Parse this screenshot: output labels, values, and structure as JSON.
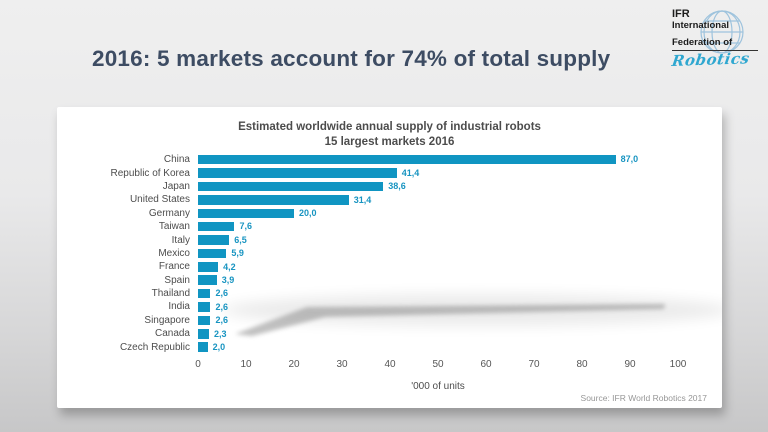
{
  "slide": {
    "title": "2016: 5 markets account for 74% of total supply"
  },
  "logo": {
    "line1": "IFR",
    "line2": "International",
    "line3": "Federation of",
    "script": "Robotics",
    "script_color": "#2fa7d0",
    "globe_icon": "globe-icon"
  },
  "chart_data": {
    "type": "bar",
    "orientation": "horizontal",
    "title_line1": "Estimated worldwide  annual supply of industrial robots",
    "title_line2": "15 largest markets 2016",
    "xlabel": "'000 of units",
    "source": "Source: IFR World Robotics 2017",
    "xlim": [
      0,
      100
    ],
    "x_ticks": [
      "0",
      "10",
      "20",
      "30",
      "40",
      "50",
      "60",
      "70",
      "80",
      "90",
      "100"
    ],
    "grid": false,
    "legend": false,
    "bar_color": "#1095c2",
    "value_label_color": "#1794c1",
    "categories": [
      "China",
      "Republic of Korea",
      "Japan",
      "United States",
      "Germany",
      "Taiwan",
      "Italy",
      "Mexico",
      "France",
      "Spain",
      "Thailand",
      "India",
      "Singapore",
      "Canada",
      "Czech Republic"
    ],
    "values": [
      87.0,
      41.4,
      38.6,
      31.4,
      20.0,
      7.6,
      6.5,
      5.9,
      4.2,
      3.9,
      2.6,
      2.6,
      2.6,
      2.3,
      2.0
    ],
    "value_labels": [
      "87,0",
      "41,4",
      "38,6",
      "31,4",
      "20,0",
      "7,6",
      "6,5",
      "5,9",
      "4,2",
      "3,9",
      "2,6",
      "2,6",
      "2,6",
      "2,3",
      "2,0"
    ]
  }
}
